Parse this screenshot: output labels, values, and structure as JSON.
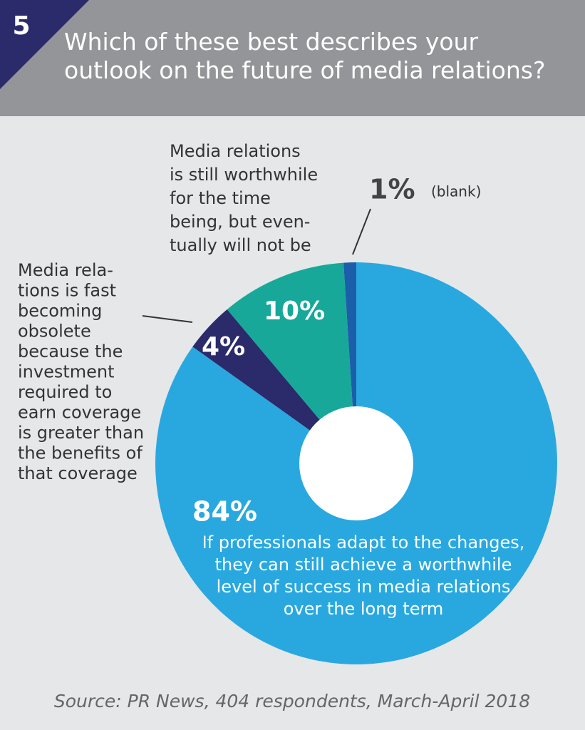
{
  "chart_data": {
    "type": "donut",
    "badge": "5",
    "title": "Which of these best describes your\noutlook on the future of media relations?",
    "categories": [
      "If professionals adapt to the changes,\nthey can still achieve a worthwhile\nlevel of success in media relations\nover the long term",
      "Media rela-\ntions is fast\nbecoming\nobsolete\nbecause the\ninvestment\nrequired to\nearn coverage\nis greater than\nthe benefits of\nthat coverage",
      "Media relations\nis still worthwhile\nfor the time\nbeing, but even-\ntually will not be",
      "(blank)"
    ],
    "values": [
      84,
      4,
      10,
      1
    ],
    "value_labels": [
      "84%",
      "4%",
      "10%",
      "1%"
    ],
    "colors": [
      "#29a8e0",
      "#2b2a6b",
      "#17a89a",
      "#1b5ea9"
    ],
    "source": "Source: PR News, 404 respondents, March-April 2018"
  }
}
